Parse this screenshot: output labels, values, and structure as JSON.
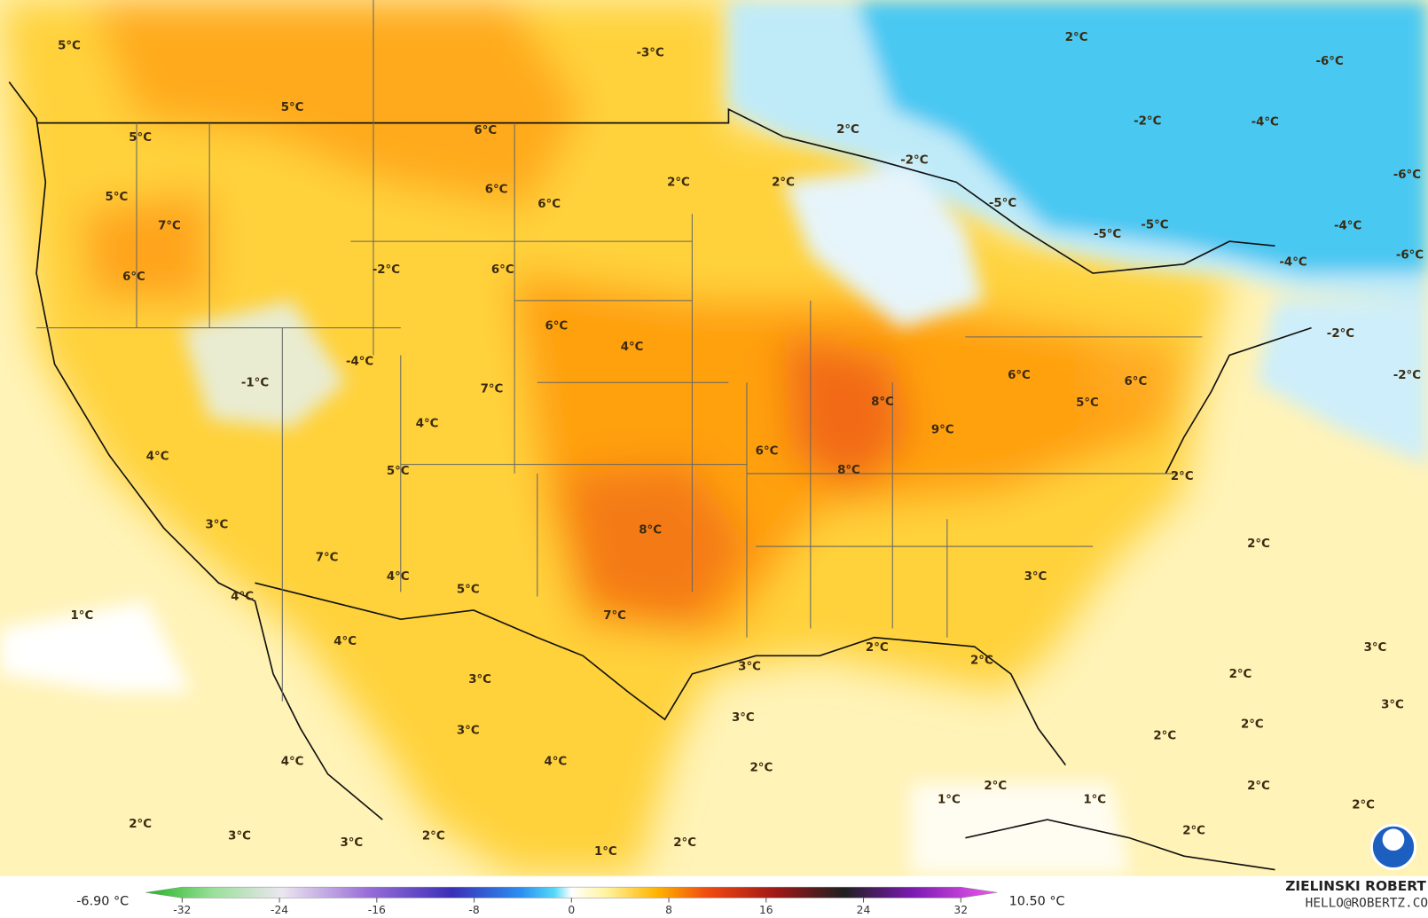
{
  "map_labels": [
    "5°C",
    "5°C",
    "5°C",
    "6°C",
    "6°C",
    "6°C",
    "2°C",
    "2°C",
    "2°C",
    "-2°C",
    "-3°C",
    "2°C",
    "-6°C",
    "-2°C",
    "-4°C",
    "-6°C",
    "-5°C",
    "-5°C",
    "-5°C",
    "-4°C",
    "-6°C",
    "-4°C",
    "-2°C",
    "-2°C",
    "5°C",
    "7°C",
    "6°C",
    "-2°C",
    "6°C",
    "6°C",
    "4°C",
    "-4°C",
    "-1°C",
    "7°C",
    "4°C",
    "6°C",
    "6°C",
    "5°C",
    "8°C",
    "9°C",
    "6°C",
    "8°C",
    "5°C",
    "4°C",
    "3°C",
    "2°C",
    "8°C",
    "7°C",
    "4°C",
    "5°C",
    "2°C",
    "4°C",
    "1°C",
    "7°C",
    "3°C",
    "4°C",
    "3°C",
    "2°C",
    "2°C",
    "3°C",
    "3°C",
    "2°C",
    "3°C",
    "3°C",
    "3°C",
    "2°C",
    "2°C",
    "4°C",
    "4°C",
    "2°C",
    "2°C",
    "2°C",
    "1°C",
    "1°C",
    "2°C",
    "2°C",
    "3°C",
    "3°C",
    "2°C",
    "2°C",
    "2°C",
    "1°C"
  ],
  "legend": {
    "min_label": "-6.90 °C",
    "max_label": "10.50 °C",
    "ticks": [
      -32,
      -24,
      -16,
      -8,
      0,
      8,
      16,
      24,
      32
    ]
  },
  "credit": {
    "name": "ZIELINSKI ROBERT",
    "contact": "HELLO@ROBERTZ.CO"
  }
}
